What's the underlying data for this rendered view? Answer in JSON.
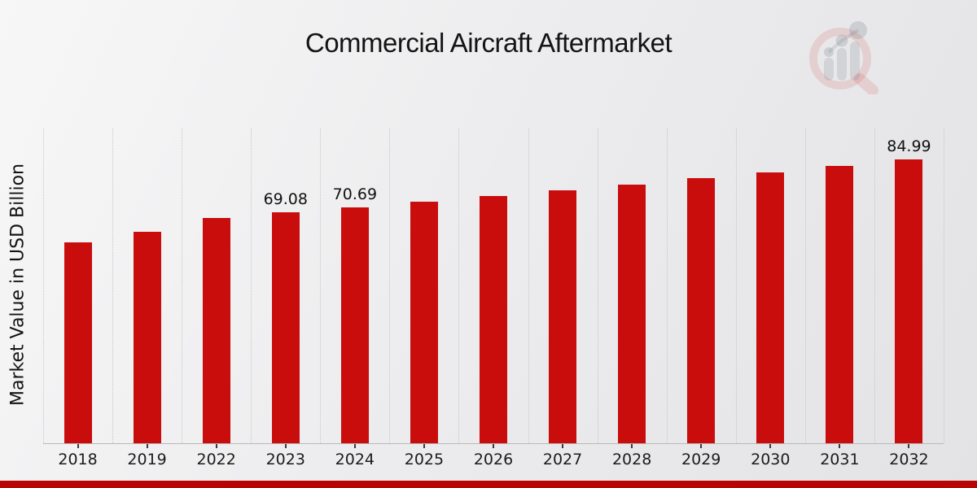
{
  "title": "Commercial Aircraft Aftermarket",
  "colors": {
    "bar": "#c90d0d",
    "footer_bar": "#b90404",
    "gridline": "#c6c6c6",
    "axis_line": "#b9b9b9",
    "text": "#141414"
  },
  "watermark": "market-research-future-logo",
  "chart_data": {
    "type": "bar",
    "title": "Commercial Aircraft Aftermarket",
    "xlabel": "",
    "ylabel": "Market Value in USD Billion",
    "categories": [
      "2018",
      "2019",
      "2022",
      "2023",
      "2024",
      "2025",
      "2026",
      "2027",
      "2028",
      "2029",
      "2030",
      "2031",
      "2032"
    ],
    "values": [
      60.1,
      63.2,
      67.5,
      69.08,
      70.69,
      72.34,
      74.02,
      75.75,
      77.51,
      79.32,
      81.17,
      83.06,
      84.99
    ],
    "value_labels": {
      "2023": "69.08",
      "2024": "70.69",
      "2032": "84.99"
    },
    "ylim": [
      0,
      94.2
    ],
    "grid": "vertical-dotted",
    "legend": "none"
  }
}
